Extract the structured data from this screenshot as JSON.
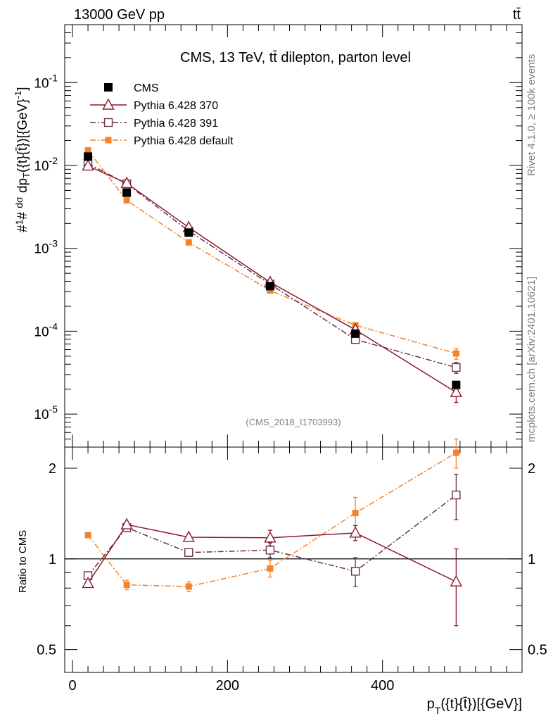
{
  "header": {
    "left": "13000 GeV pp",
    "right": "tt̄"
  },
  "side_labels": {
    "rivet": "Rivet 4.1.0, ≥ 100k events",
    "mcplots": "mcplots.cern.ch [arXiv:2401.10621]"
  },
  "chart_data": [
    {
      "type": "line",
      "title": "CMS, 13 TeV, tt̄ dilepton, parton level",
      "watermark": "(CMS_2018_I1703993)",
      "yscale": "log",
      "xlim": [
        -10,
        580
      ],
      "ylim": [
        4e-06,
        0.5
      ],
      "xlabel": "p_T({t}{t̄})[{GeV}]",
      "ylabel": "#1/σ # dσ/dp_T({t}{t̄})[{GeV}^-1]",
      "ytick_labels": [
        "10^-5",
        "10^-4",
        "10^-3",
        "10^-2",
        "10^-1"
      ],
      "ytick_values": [
        1e-05,
        0.0001,
        0.001,
        0.01,
        0.1
      ],
      "legend_position": "top-left",
      "series": [
        {
          "name": "CMS",
          "color": "#000000",
          "marker": "filled-square",
          "line": "none",
          "x": [
            20,
            70,
            150,
            255,
            365,
            495
          ],
          "y": [
            0.0128,
            0.0047,
            0.00155,
            0.00035,
            9.35e-05,
            2.25e-05
          ],
          "err": [
            0,
            0,
            0,
            0,
            0,
            0
          ]
        },
        {
          "name": "Pythia 6.428 370",
          "color": "#8b1a2e",
          "marker": "open-triangle",
          "line": "solid",
          "x": [
            20,
            70,
            150,
            255,
            365,
            495
          ],
          "y": [
            0.0099,
            0.0061,
            0.00179,
            0.00039,
            0.000104,
            1.83e-05
          ],
          "err": [
            0,
            0,
            0,
            3e-05,
            6e-06,
            4.5e-06
          ]
        },
        {
          "name": "Pythia 6.428 391",
          "color": "#6b3048",
          "marker": "open-square",
          "line": "dashdot",
          "x": [
            20,
            70,
            150,
            255,
            365,
            495
          ],
          "y": [
            0.0106,
            0.006,
            0.00162,
            0.00037,
            7.95e-05,
            3.65e-05
          ],
          "err": [
            0,
            0,
            0,
            2.5e-05,
            7e-06,
            5.5e-06
          ]
        },
        {
          "name": "Pythia 6.428 default",
          "color": "#f5822a",
          "marker": "filled-square-small",
          "line": "dashdot",
          "x": [
            20,
            70,
            150,
            255,
            365,
            495
          ],
          "y": [
            0.0152,
            0.0038,
            0.00118,
            0.00031,
            0.000118,
            5.4e-05
          ],
          "err": [
            0,
            0,
            5e-05,
            2e-05,
            9e-06,
            8e-06
          ]
        }
      ]
    },
    {
      "type": "line",
      "yscale": "log",
      "ylabel": "Ratio to CMS",
      "xlim": [
        -10,
        580
      ],
      "ylim": [
        0.42,
        2.35
      ],
      "ytick_labels": [
        "0.5",
        "1",
        "2"
      ],
      "ytick_values": [
        0.5,
        1,
        2
      ],
      "xtick_labels": [
        "0",
        "200",
        "400"
      ],
      "xtick_values": [
        0,
        200,
        400
      ],
      "reference_line": 1,
      "series": [
        {
          "name": "Pythia 6.428 370",
          "color": "#8b1a2e",
          "marker": "open-triangle",
          "line": "solid",
          "x": [
            20,
            70,
            150,
            255,
            365,
            495
          ],
          "y": [
            0.83,
            1.3,
            1.18,
            1.175,
            1.22,
            0.84
          ],
          "err": [
            0,
            0.03,
            0.03,
            0.07,
            0.07,
            0.24
          ]
        },
        {
          "name": "Pythia 6.428 391",
          "color": "#6b3048",
          "marker": "open-square",
          "line": "dashdot",
          "x": [
            20,
            70,
            150,
            255,
            365,
            495
          ],
          "y": [
            0.88,
            1.27,
            1.05,
            1.07,
            0.91,
            1.63
          ],
          "err": [
            0,
            0.03,
            0.03,
            0.06,
            0.1,
            0.28
          ]
        },
        {
          "name": "Pythia 6.428 default",
          "color": "#f5822a",
          "marker": "filled-square-small",
          "line": "dashdot",
          "x": [
            20,
            70,
            150,
            255,
            365,
            495
          ],
          "y": [
            1.2,
            0.82,
            0.81,
            0.93,
            1.42,
            2.25
          ],
          "err": [
            0,
            0.03,
            0.03,
            0.06,
            0.18,
            0.25
          ]
        }
      ]
    }
  ]
}
